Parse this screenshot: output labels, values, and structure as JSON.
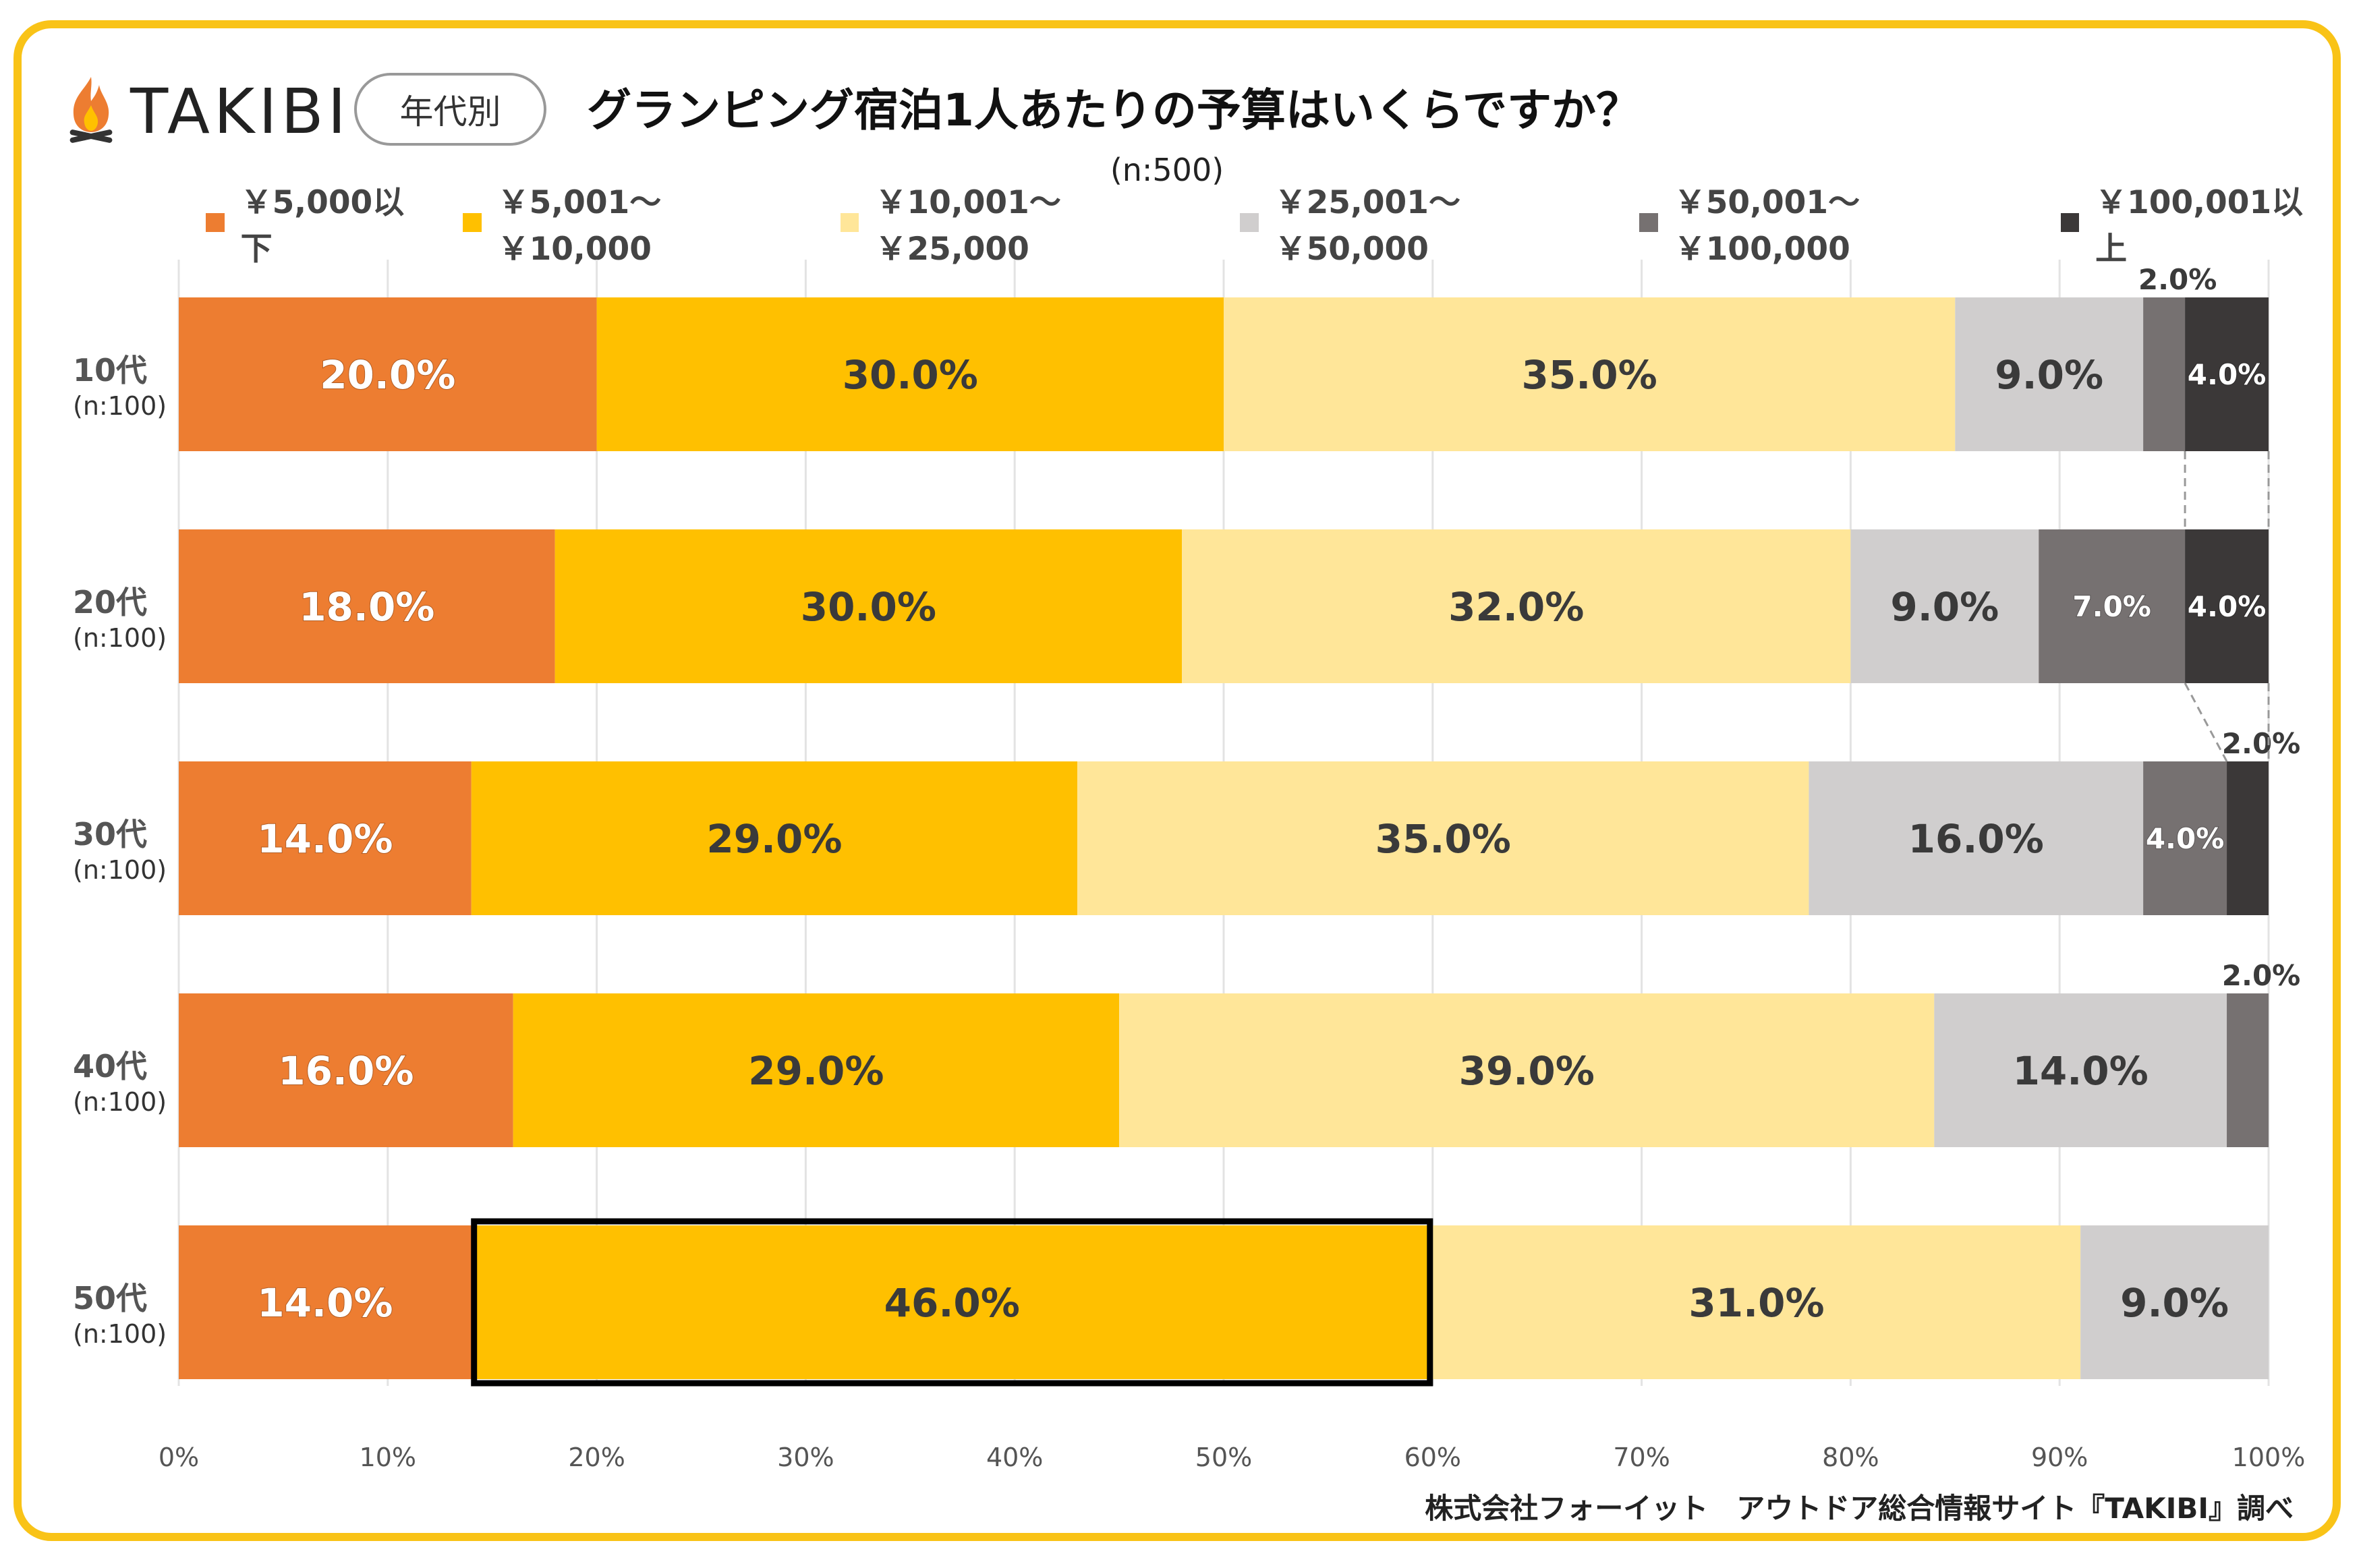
{
  "header": {
    "logo_text": "TAKIBI",
    "pill_label": "年代別",
    "title": "グランピング宿泊1人あたりの予算はいくらですか？",
    "sample_size": "(n:500)"
  },
  "footer": {
    "source": "株式会社フォーイット　アウトドア総合情報サイト『TAKIBI』調べ"
  },
  "chart_data": {
    "type": "bar",
    "orientation": "horizontal",
    "stacked": true,
    "normalized": true,
    "title": "グランピング宿泊1人あたりの予算はいくらですか？",
    "xlabel": "",
    "ylabel": "",
    "xlim": [
      0,
      100
    ],
    "x_ticks": [
      "0%",
      "10%",
      "20%",
      "30%",
      "40%",
      "50%",
      "60%",
      "70%",
      "80%",
      "90%",
      "100%"
    ],
    "grid": "vertical",
    "legend_position": "top",
    "categories": [
      {
        "label": "10代",
        "n": "(n:100)"
      },
      {
        "label": "20代",
        "n": "(n:100)"
      },
      {
        "label": "30代",
        "n": "(n:100)"
      },
      {
        "label": "40代",
        "n": "(n:100)"
      },
      {
        "label": "50代",
        "n": "(n:100)"
      }
    ],
    "series": [
      {
        "name": "￥5,000以下",
        "color": "#ed7d31",
        "label_color": "#ffffff",
        "values": [
          20,
          18,
          14,
          16,
          14
        ],
        "labels": [
          "20.0%",
          "18.0%",
          "14.0%",
          "16.0%",
          "14.0%"
        ]
      },
      {
        "name": "￥5,001～￥10,000",
        "color": "#ffc000",
        "label_color": "#3a3a3a",
        "values": [
          30,
          30,
          29,
          29,
          46
        ],
        "labels": [
          "30.0%",
          "30.0%",
          "29.0%",
          "29.0%",
          "46.0%"
        ]
      },
      {
        "name": "￥10,001～￥25,000",
        "color": "#ffe699",
        "label_color": "#3a3a3a",
        "values": [
          35,
          32,
          35,
          39,
          31
        ],
        "labels": [
          "35.0%",
          "32.0%",
          "35.0%",
          "39.0%",
          "31.0%"
        ]
      },
      {
        "name": "￥25,001～￥50,000",
        "color": "#d0cece",
        "label_color": "#3a3a3a",
        "values": [
          9,
          9,
          16,
          14,
          9
        ],
        "labels": [
          "9.0%",
          "9.0%",
          "16.0%",
          "14.0%",
          "9.0%"
        ]
      },
      {
        "name": "￥50,001～￥100,000",
        "color": "#767171",
        "label_color": "#ffffff",
        "values": [
          2,
          7,
          4,
          2,
          0
        ],
        "labels": [
          "2.0%",
          "7.0%",
          "4.0%",
          "2.0%",
          ""
        ]
      },
      {
        "name": "￥100,001以上",
        "color": "#3b3838",
        "label_color": "#ffffff",
        "values": [
          4,
          4,
          2,
          0,
          0
        ],
        "labels": [
          "4.0%",
          "4.0%",
          "2.0%",
          "",
          ""
        ]
      }
    ],
    "highlight": {
      "category": "50代",
      "series": "￥5,001～￥10,000"
    }
  }
}
